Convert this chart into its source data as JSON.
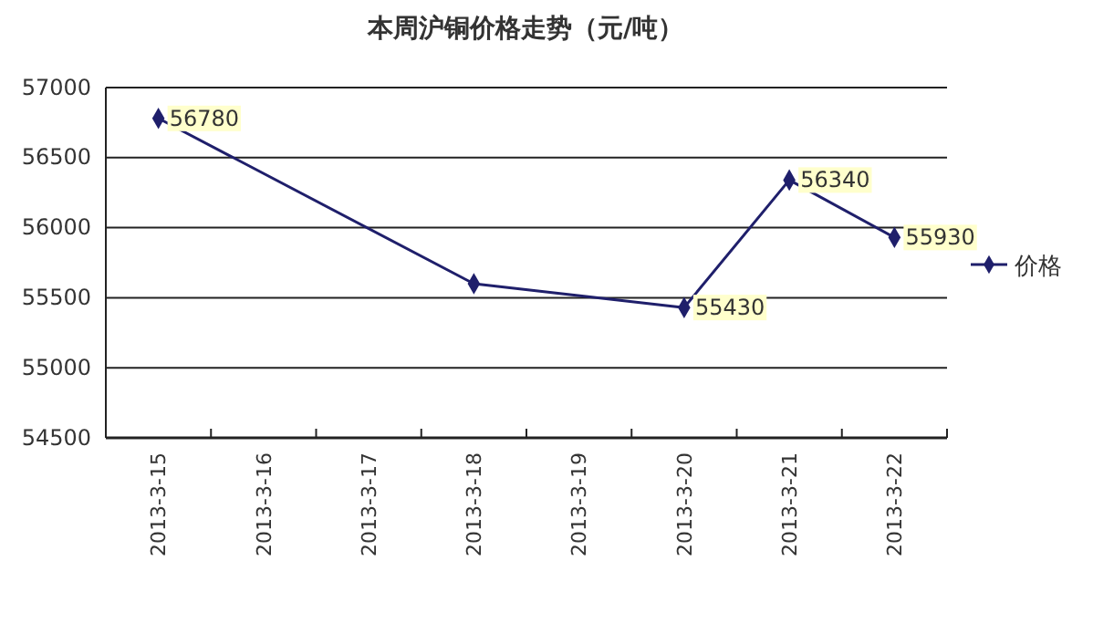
{
  "chart_data": {
    "type": "line",
    "title": "本周沪铜价格走势（元/吨）",
    "categories": [
      "2013-3-15",
      "2013-3-16",
      "2013-3-17",
      "2013-3-18",
      "2013-3-19",
      "2013-3-20",
      "2013-3-21",
      "2013-3-22"
    ],
    "series": [
      {
        "name": "价格",
        "color": "#1f1f6b",
        "values": [
          56780,
          null,
          null,
          55600,
          null,
          55430,
          56340,
          55930
        ],
        "value_labels": [
          "56780",
          null,
          null,
          null,
          null,
          "55430",
          "56340",
          "55930"
        ]
      }
    ],
    "ylim": [
      54500,
      57000
    ],
    "yticks": [
      54500,
      55000,
      55500,
      56000,
      56500,
      57000
    ],
    "grid": "y",
    "legend": "right",
    "marker": "diamond"
  }
}
